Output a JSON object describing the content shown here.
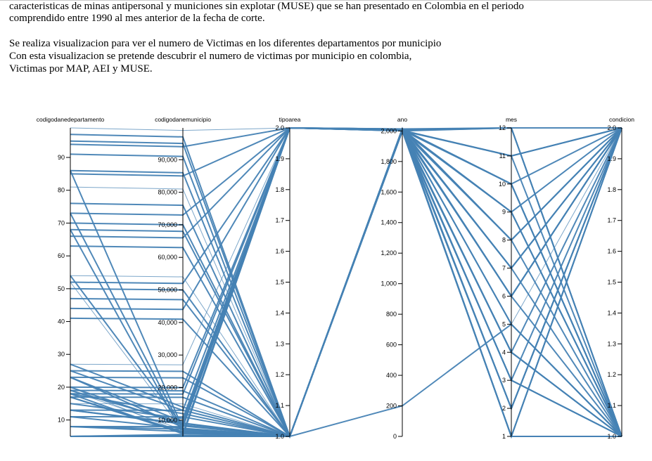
{
  "text": {
    "line1": "caracteristicas de minas antipersonal y municiones sin explotar (MUSE) que se han presentado en Colombia en el periodo",
    "line2": "comprendido entre 1990 al mes anterior de la fecha de corte.",
    "line3": "Se realiza visualizacion para ver el numero de Victimas en los diferentes departamentos por municipio",
    "line4": "Con esta visualizacion se pretende descubrir el numero de victimas por municipio en colombia,",
    "line5": "Victimas por MAP, AEI y MUSE."
  },
  "chart_data": {
    "type": "parallel_coordinates",
    "line_color": "#4682b4",
    "axes": [
      {
        "name": "codigodanedepartamento",
        "domain": [
          5,
          99
        ],
        "ticks": [
          10,
          20,
          30,
          40,
          50,
          60,
          70,
          80,
          90
        ],
        "tick_labels": [
          "10",
          "20",
          "30",
          "40",
          "50",
          "60",
          "70",
          "80",
          "90"
        ]
      },
      {
        "name": "codigodanemunicipio",
        "domain": [
          5001,
          99773
        ],
        "ticks": [
          10000,
          20000,
          30000,
          40000,
          50000,
          60000,
          70000,
          80000,
          90000
        ],
        "tick_labels": [
          "10,000",
          "20,000",
          "30,000",
          "40,000",
          "50,000",
          "60,000",
          "70,000",
          "80,000",
          "90,000"
        ]
      },
      {
        "name": "tipoarea",
        "domain": [
          1,
          2
        ],
        "ticks": [
          1.0,
          1.1,
          1.2,
          1.3,
          1.4,
          1.5,
          1.6,
          1.7,
          1.8,
          1.9,
          2.0
        ],
        "tick_labels": [
          "1.0",
          "1.1",
          "1.2",
          "1.3",
          "1.4",
          "1.5",
          "1.6",
          "1.7",
          "1.8",
          "1.9",
          "2.0"
        ]
      },
      {
        "name": "ano",
        "domain": [
          0,
          2020
        ],
        "ticks": [
          0,
          200,
          400,
          600,
          800,
          1000,
          1200,
          1400,
          1600,
          1800,
          2000
        ],
        "tick_labels": [
          "0",
          "200",
          "400",
          "600",
          "800",
          "1,000",
          "1,200",
          "1,400",
          "1,600",
          "1,800",
          "2,000"
        ]
      },
      {
        "name": "mes",
        "domain": [
          1,
          12
        ],
        "ticks": [
          1,
          2,
          3,
          4,
          5,
          6,
          7,
          8,
          9,
          10,
          11,
          12
        ],
        "tick_labels": [
          "1",
          "2",
          "3",
          "4",
          "5",
          "6",
          "7",
          "8",
          "9",
          "10",
          "11",
          "12"
        ]
      },
      {
        "name": "condicion",
        "domain": [
          1,
          2
        ],
        "ticks": [
          1.0,
          1.1,
          1.2,
          1.3,
          1.4,
          1.5,
          1.6,
          1.7,
          1.8,
          1.9,
          2.0
        ],
        "tick_labels": [
          "1.0",
          "1.1",
          "1.2",
          "1.3",
          "1.4",
          "1.5",
          "1.6",
          "1.7",
          "1.8",
          "1.9",
          "2.0"
        ]
      }
    ],
    "records": [
      [
        5,
        5001,
        1,
        2005,
        1,
        1
      ],
      [
        5,
        5120,
        1,
        2006,
        3,
        2
      ],
      [
        5,
        5250,
        2,
        2008,
        6,
        1
      ],
      [
        5,
        5400,
        1,
        2002,
        9,
        2
      ],
      [
        8,
        6500,
        1,
        2010,
        12,
        1
      ],
      [
        8,
        8001,
        2,
        2001,
        2,
        2
      ],
      [
        11,
        7500,
        1,
        2003,
        4,
        1
      ],
      [
        11,
        11001,
        1,
        2009,
        7,
        2
      ],
      [
        13,
        13001,
        2,
        2012,
        10,
        1
      ],
      [
        13,
        9000,
        1,
        2004,
        11,
        2
      ],
      [
        15,
        15001,
        1,
        2007,
        5,
        1
      ],
      [
        15,
        10500,
        2,
        2011,
        8,
        2
      ],
      [
        17,
        17001,
        1,
        2000,
        12,
        1
      ],
      [
        17,
        6000,
        1,
        1999,
        1,
        2
      ],
      [
        18,
        18001,
        2,
        2013,
        3,
        1
      ],
      [
        18,
        12000,
        1,
        2005,
        6,
        2
      ],
      [
        19,
        19001,
        1,
        2006,
        9,
        1
      ],
      [
        19,
        7000,
        1,
        2014,
        2,
        2
      ],
      [
        20,
        20001,
        2,
        2002,
        4,
        1
      ],
      [
        20,
        8500,
        1,
        2008,
        7,
        2
      ],
      [
        23,
        23001,
        1,
        2010,
        10,
        1
      ],
      [
        23,
        9500,
        2,
        2003,
        11,
        2
      ],
      [
        25,
        25001,
        1,
        2007,
        5,
        1
      ],
      [
        25,
        13000,
        1,
        2015,
        8,
        2
      ],
      [
        27,
        27001,
        2,
        2001,
        12,
        1
      ],
      [
        27,
        14000,
        1,
        2009,
        1,
        2
      ],
      [
        41,
        41001,
        1,
        2004,
        3,
        1
      ],
      [
        44,
        44001,
        2,
        2012,
        6,
        2
      ],
      [
        47,
        47001,
        1,
        2000,
        9,
        1
      ],
      [
        50,
        50001,
        1,
        2011,
        2,
        2
      ],
      [
        52,
        52001,
        2,
        2006,
        4,
        1
      ],
      [
        54,
        54001,
        1,
        2013,
        7,
        2
      ],
      [
        63,
        63001,
        1,
        2005,
        10,
        1
      ],
      [
        66,
        66001,
        2,
        2002,
        11,
        2
      ],
      [
        68,
        68001,
        1,
        2008,
        5,
        1
      ],
      [
        70,
        70001,
        1,
        2014,
        8,
        2
      ],
      [
        73,
        73001,
        2,
        2003,
        12,
        1
      ],
      [
        76,
        76001,
        1,
        2010,
        1,
        2
      ],
      [
        81,
        81001,
        1,
        2007,
        3,
        1
      ],
      [
        85,
        85001,
        2,
        2001,
        6,
        2
      ],
      [
        86,
        86001,
        1,
        2009,
        9,
        1
      ],
      [
        91,
        91001,
        1,
        2004,
        2,
        2
      ],
      [
        94,
        94001,
        2,
        2012,
        4,
        1
      ],
      [
        95,
        95001,
        1,
        2000,
        7,
        2
      ],
      [
        97,
        97001,
        1,
        2011,
        10,
        1
      ],
      [
        99,
        99001,
        2,
        2006,
        11,
        2
      ],
      [
        5,
        5300,
        1,
        200,
        5,
        1
      ],
      [
        8,
        7200,
        1,
        2013,
        12,
        2
      ],
      [
        13,
        8800,
        2,
        2005,
        1,
        1
      ],
      [
        17,
        6400,
        1,
        2008,
        6,
        2
      ],
      [
        19,
        9100,
        1,
        2002,
        3,
        1
      ],
      [
        23,
        7800,
        2,
        2010,
        9,
        2
      ],
      [
        52,
        6700,
        1,
        2007,
        12,
        1
      ],
      [
        54,
        8200,
        1,
        2015,
        2,
        2
      ],
      [
        68,
        5900,
        2,
        2001,
        11,
        1
      ],
      [
        73,
        6900,
        1,
        2009,
        4,
        2
      ],
      [
        86,
        7400,
        1,
        2004,
        7,
        1
      ],
      [
        5,
        5600,
        2,
        2012,
        10,
        2
      ],
      [
        18,
        5800,
        1,
        2000,
        8,
        1
      ],
      [
        20,
        6200,
        1,
        2011,
        5,
        2
      ]
    ]
  }
}
